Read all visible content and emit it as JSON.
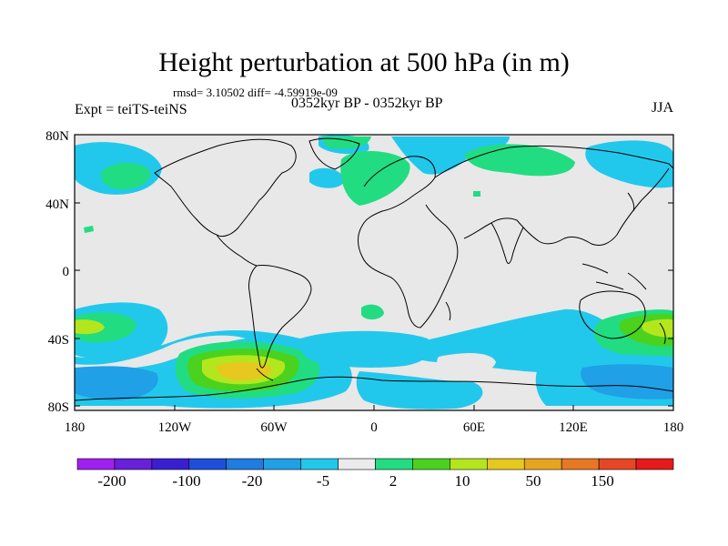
{
  "map": {
    "title": "Height perturbation at 500 hPa (in m)",
    "stats": "rmsd= 3.10502 diff= -4.59919e-09",
    "experiment": "Expt = teiTS-teiNS",
    "period": "0352kyr BP - 0352kyr BP",
    "season": "JJA",
    "lat_ticks": [
      "80N",
      "40N",
      "0",
      "40S",
      "80S"
    ],
    "lon_ticks": [
      "180",
      "120W",
      "60W",
      "0",
      "60E",
      "120E",
      "180"
    ],
    "background_color": "#e8e8e8"
  },
  "colorbar": {
    "colors": [
      "#a020f0",
      "#6a1fd8",
      "#3a1fd0",
      "#1f4fd8",
      "#1f7ce0",
      "#20a0e6",
      "#22c8ec",
      "#ebebeb",
      "#22dc82",
      "#4ad21e",
      "#b4e61e",
      "#e6c81e",
      "#e6a51e",
      "#e67823",
      "#e64626",
      "#e61a1a"
    ],
    "labels": [
      "-200",
      "-100",
      "-20",
      "-5",
      "2",
      "10",
      "50",
      "150"
    ]
  }
}
